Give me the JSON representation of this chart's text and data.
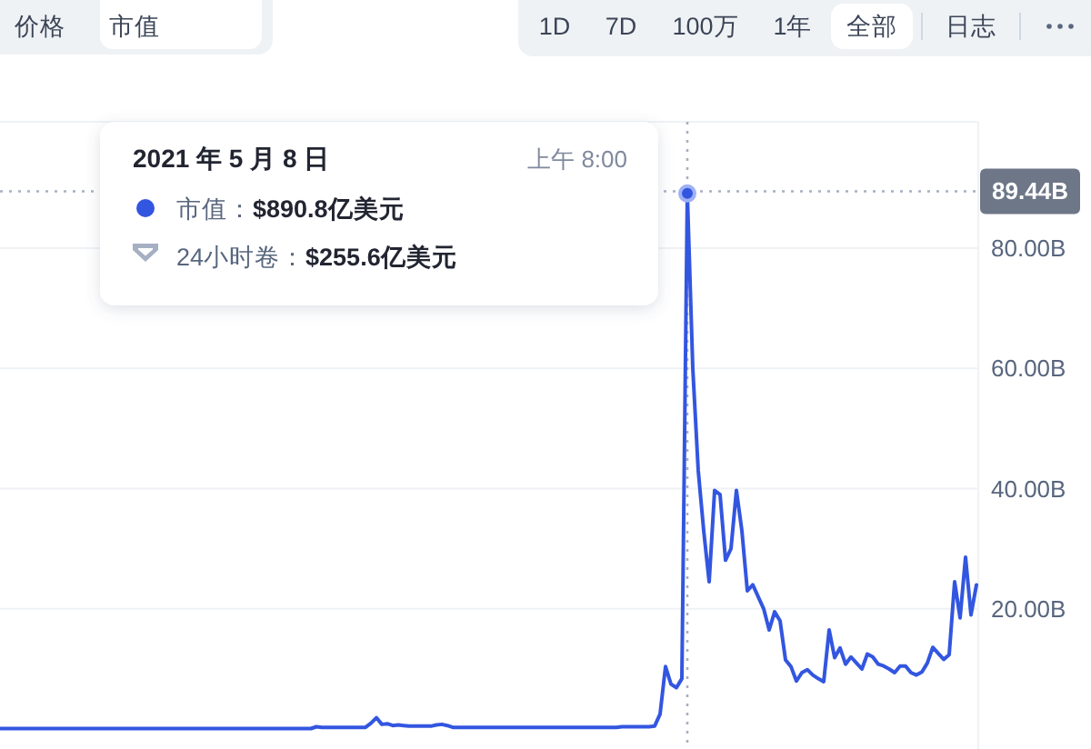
{
  "chart_data": {
    "type": "line",
    "categories": [
      null,
      null,
      null,
      null,
      null,
      null,
      null,
      null,
      null,
      null,
      null,
      null,
      null,
      null,
      null,
      null,
      null,
      null,
      null,
      null,
      null,
      null,
      null,
      null,
      null,
      null,
      null,
      null,
      null,
      null,
      null,
      null,
      null,
      null,
      null,
      null,
      null,
      null,
      null,
      null,
      null,
      null,
      null,
      null,
      null,
      null,
      null,
      null,
      null,
      null,
      null,
      null,
      null,
      null,
      null,
      null,
      null,
      null,
      null,
      null,
      null,
      null,
      null,
      null,
      null,
      null,
      null,
      null,
      null,
      null,
      null,
      null,
      null,
      null,
      null,
      null,
      null,
      null,
      null,
      null,
      null,
      null,
      null,
      null,
      null,
      null,
      null,
      null,
      null,
      null,
      null,
      null,
      null,
      null,
      null,
      null,
      null,
      null,
      null,
      null,
      null,
      null,
      null,
      null,
      null,
      null,
      null,
      null,
      null,
      null,
      null,
      null,
      null,
      null,
      null,
      null,
      null,
      null,
      null,
      null,
      null,
      null,
      null,
      null,
      null,
      null,
      null,
      null,
      null,
      null,
      null,
      null,
      null,
      null,
      null,
      null,
      null,
      null,
      null,
      null,
      null,
      null,
      null,
      null,
      null,
      null,
      null,
      null,
      null,
      null,
      null,
      null,
      null,
      null,
      null,
      null,
      null,
      null,
      null,
      null,
      null,
      null,
      null,
      null,
      null,
      null,
      null,
      null,
      null,
      null,
      null,
      null,
      null,
      null,
      null,
      null,
      null,
      null,
      null,
      null
    ],
    "series": [
      {
        "color": "#3356e0",
        "values": [
          0.1,
          0.1,
          0.1,
          0.1,
          0.1,
          0.1,
          0.1,
          0.1,
          0.1,
          0.1,
          0.1,
          0.1,
          0.1,
          0.1,
          0.1,
          0.1,
          0.1,
          0.1,
          0.1,
          0.1,
          0.1,
          0.1,
          0.1,
          0.1,
          0.1,
          0.1,
          0.1,
          0.1,
          0.1,
          0.1,
          0.1,
          0.1,
          0.1,
          0.1,
          0.1,
          0.1,
          0.1,
          0.1,
          0.1,
          0.1,
          0.1,
          0.1,
          0.1,
          0.1,
          0.1,
          0.1,
          0.1,
          0.1,
          0.1,
          0.1,
          0.1,
          0.1,
          0.1,
          0.1,
          0.1,
          0.1,
          0.1,
          0.1,
          0.4,
          0.3,
          0.3,
          0.3,
          0.3,
          0.3,
          0.3,
          0.3,
          0.3,
          0.3,
          1.0,
          1.9,
          0.8,
          0.9,
          0.6,
          0.7,
          0.6,
          0.5,
          0.5,
          0.5,
          0.5,
          0.5,
          0.7,
          0.8,
          0.6,
          0.3,
          0.3,
          0.3,
          0.3,
          0.3,
          0.3,
          0.3,
          0.3,
          0.3,
          0.3,
          0.3,
          0.3,
          0.3,
          0.3,
          0.3,
          0.3,
          0.3,
          0.3,
          0.3,
          0.3,
          0.3,
          0.3,
          0.3,
          0.3,
          0.3,
          0.3,
          0.3,
          0.3,
          0.3,
          0.3,
          0.3,
          0.4,
          0.4,
          0.4,
          0.4,
          0.4,
          0.4,
          0.5,
          2.5,
          10.4,
          7.5,
          6.9,
          8.4,
          89.08,
          60,
          43,
          33,
          24.5,
          39.7,
          39,
          28.1,
          30,
          39.7,
          33,
          23,
          24,
          22,
          20,
          16.5,
          19.5,
          18,
          11.5,
          10.4,
          8,
          9.4,
          9.9,
          9,
          8.4,
          7.9,
          16.5,
          11.9,
          13.5,
          10.8,
          12,
          11,
          10,
          12.5,
          12,
          10.8,
          10.5,
          10,
          9.4,
          10.5,
          10.5,
          9.4,
          9,
          9.5,
          11,
          13.6,
          12.6,
          11.6,
          12.4,
          24.5,
          18.5,
          28.6,
          19,
          24
        ]
      }
    ],
    "ylim": [
      -3.3,
      101
    ],
    "yticks": [
      {
        "value": 20,
        "label": "20.00B"
      },
      {
        "value": 40,
        "label": "40.00B"
      },
      {
        "value": 60,
        "label": "60.00B"
      },
      {
        "value": 80,
        "label": "80.00B"
      }
    ],
    "grid": "y",
    "tick_labels": "y",
    "ref_lines": [
      {
        "axis": "y",
        "value": 89.44,
        "label": "89.44B",
        "line_style": "dotted"
      }
    ],
    "annotations": [
      "价格",
      "市值",
      "1D",
      "7D",
      "100万",
      "1年",
      "全部",
      "日志",
      "2021 年 5 月 8 日",
      "上午 8:00",
      {
        "text": "市值：$890.8亿美元",
        "y": 89.08
      },
      "24小时卷：$255.6亿美元"
    ]
  }
}
